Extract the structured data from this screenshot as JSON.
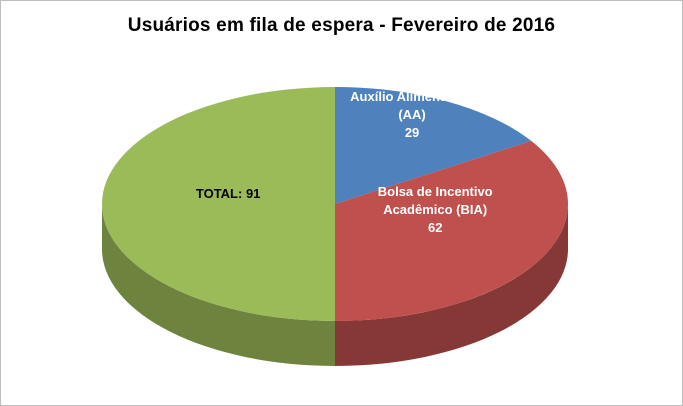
{
  "title": "Usuários em fila de espera - Fevereiro de 2016",
  "chart_data": {
    "type": "pie",
    "style": "3d-pie",
    "title": "Usuários em fila de espera - Fevereiro de 2016",
    "legend": "none",
    "grid": false,
    "total_shown": 91,
    "slices": [
      {
        "label": "Auxílio Alimentação (AA)",
        "value": 29,
        "color": "#4F81BD",
        "text_color": "#FFFFFF",
        "label_lines": [
          "Auxílio Alimentação",
          "(AA)",
          "29"
        ]
      },
      {
        "label": "Bolsa de Incentivo Acadêmico (BIA)",
        "value": 62,
        "color": "#C0504D",
        "text_color": "#FFFFFF",
        "label_lines": [
          "Bolsa de Incentivo",
          "Acadêmico (BIA)",
          "62"
        ]
      },
      {
        "label": "TOTAL",
        "value": 91,
        "color": "#9BBB59",
        "text_color": "#000000",
        "label_lines": [
          "TOTAL: 91"
        ]
      }
    ],
    "start_angle_deg": -90,
    "direction": "clockwise"
  }
}
